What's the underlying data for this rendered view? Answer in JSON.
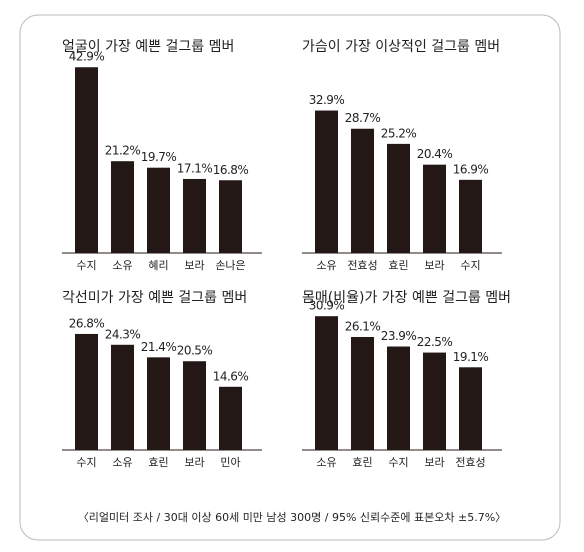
{
  "chart_data": [
    {
      "type": "bar",
      "title": "얼굴이 가장 예쁜 걸그룹 멤버",
      "categories": [
        "수지",
        "소유",
        "혜리",
        "보라",
        "손나은"
      ],
      "values": [
        42.9,
        21.2,
        19.7,
        17.1,
        16.8
      ],
      "value_labels": [
        "42.9%",
        "21.2%",
        "19.7%",
        "17.1%",
        "16.8%"
      ],
      "color": "#231815"
    },
    {
      "type": "bar",
      "title": "가슴이 가장 이상적인 걸그룹 멤버",
      "categories": [
        "소유",
        "전효성",
        "효린",
        "보라",
        "수지"
      ],
      "values": [
        32.9,
        28.7,
        25.2,
        20.4,
        16.9
      ],
      "value_labels": [
        "32.9%",
        "28.7%",
        "25.2%",
        "20.4%",
        "16.9%"
      ],
      "color": "#231815"
    },
    {
      "type": "bar",
      "title": "각선미가 가장 예쁜 걸그룹 멤버",
      "categories": [
        "수지",
        "소유",
        "효린",
        "보라",
        "민아"
      ],
      "values": [
        26.8,
        24.3,
        21.4,
        20.5,
        14.6
      ],
      "value_labels": [
        "26.8%",
        "24.3%",
        "21.4%",
        "20.5%",
        "14.6%"
      ],
      "color": "#231815"
    },
    {
      "type": "bar",
      "title": "몸매(비율)가 가장 예쁜 걸그룹 멤버",
      "categories": [
        "소유",
        "효린",
        "수지",
        "보라",
        "전효성"
      ],
      "values": [
        30.9,
        26.1,
        23.9,
        22.5,
        19.1
      ],
      "value_labels": [
        "30.9%",
        "26.1%",
        "23.9%",
        "22.5%",
        "19.1%"
      ],
      "color": "#231815"
    }
  ],
  "note": "〈리얼미터 조사 / 30대 이상 60세 미만 남성 300명 / 95% 신뢰수준에 표본오차 ±5.7%〉"
}
